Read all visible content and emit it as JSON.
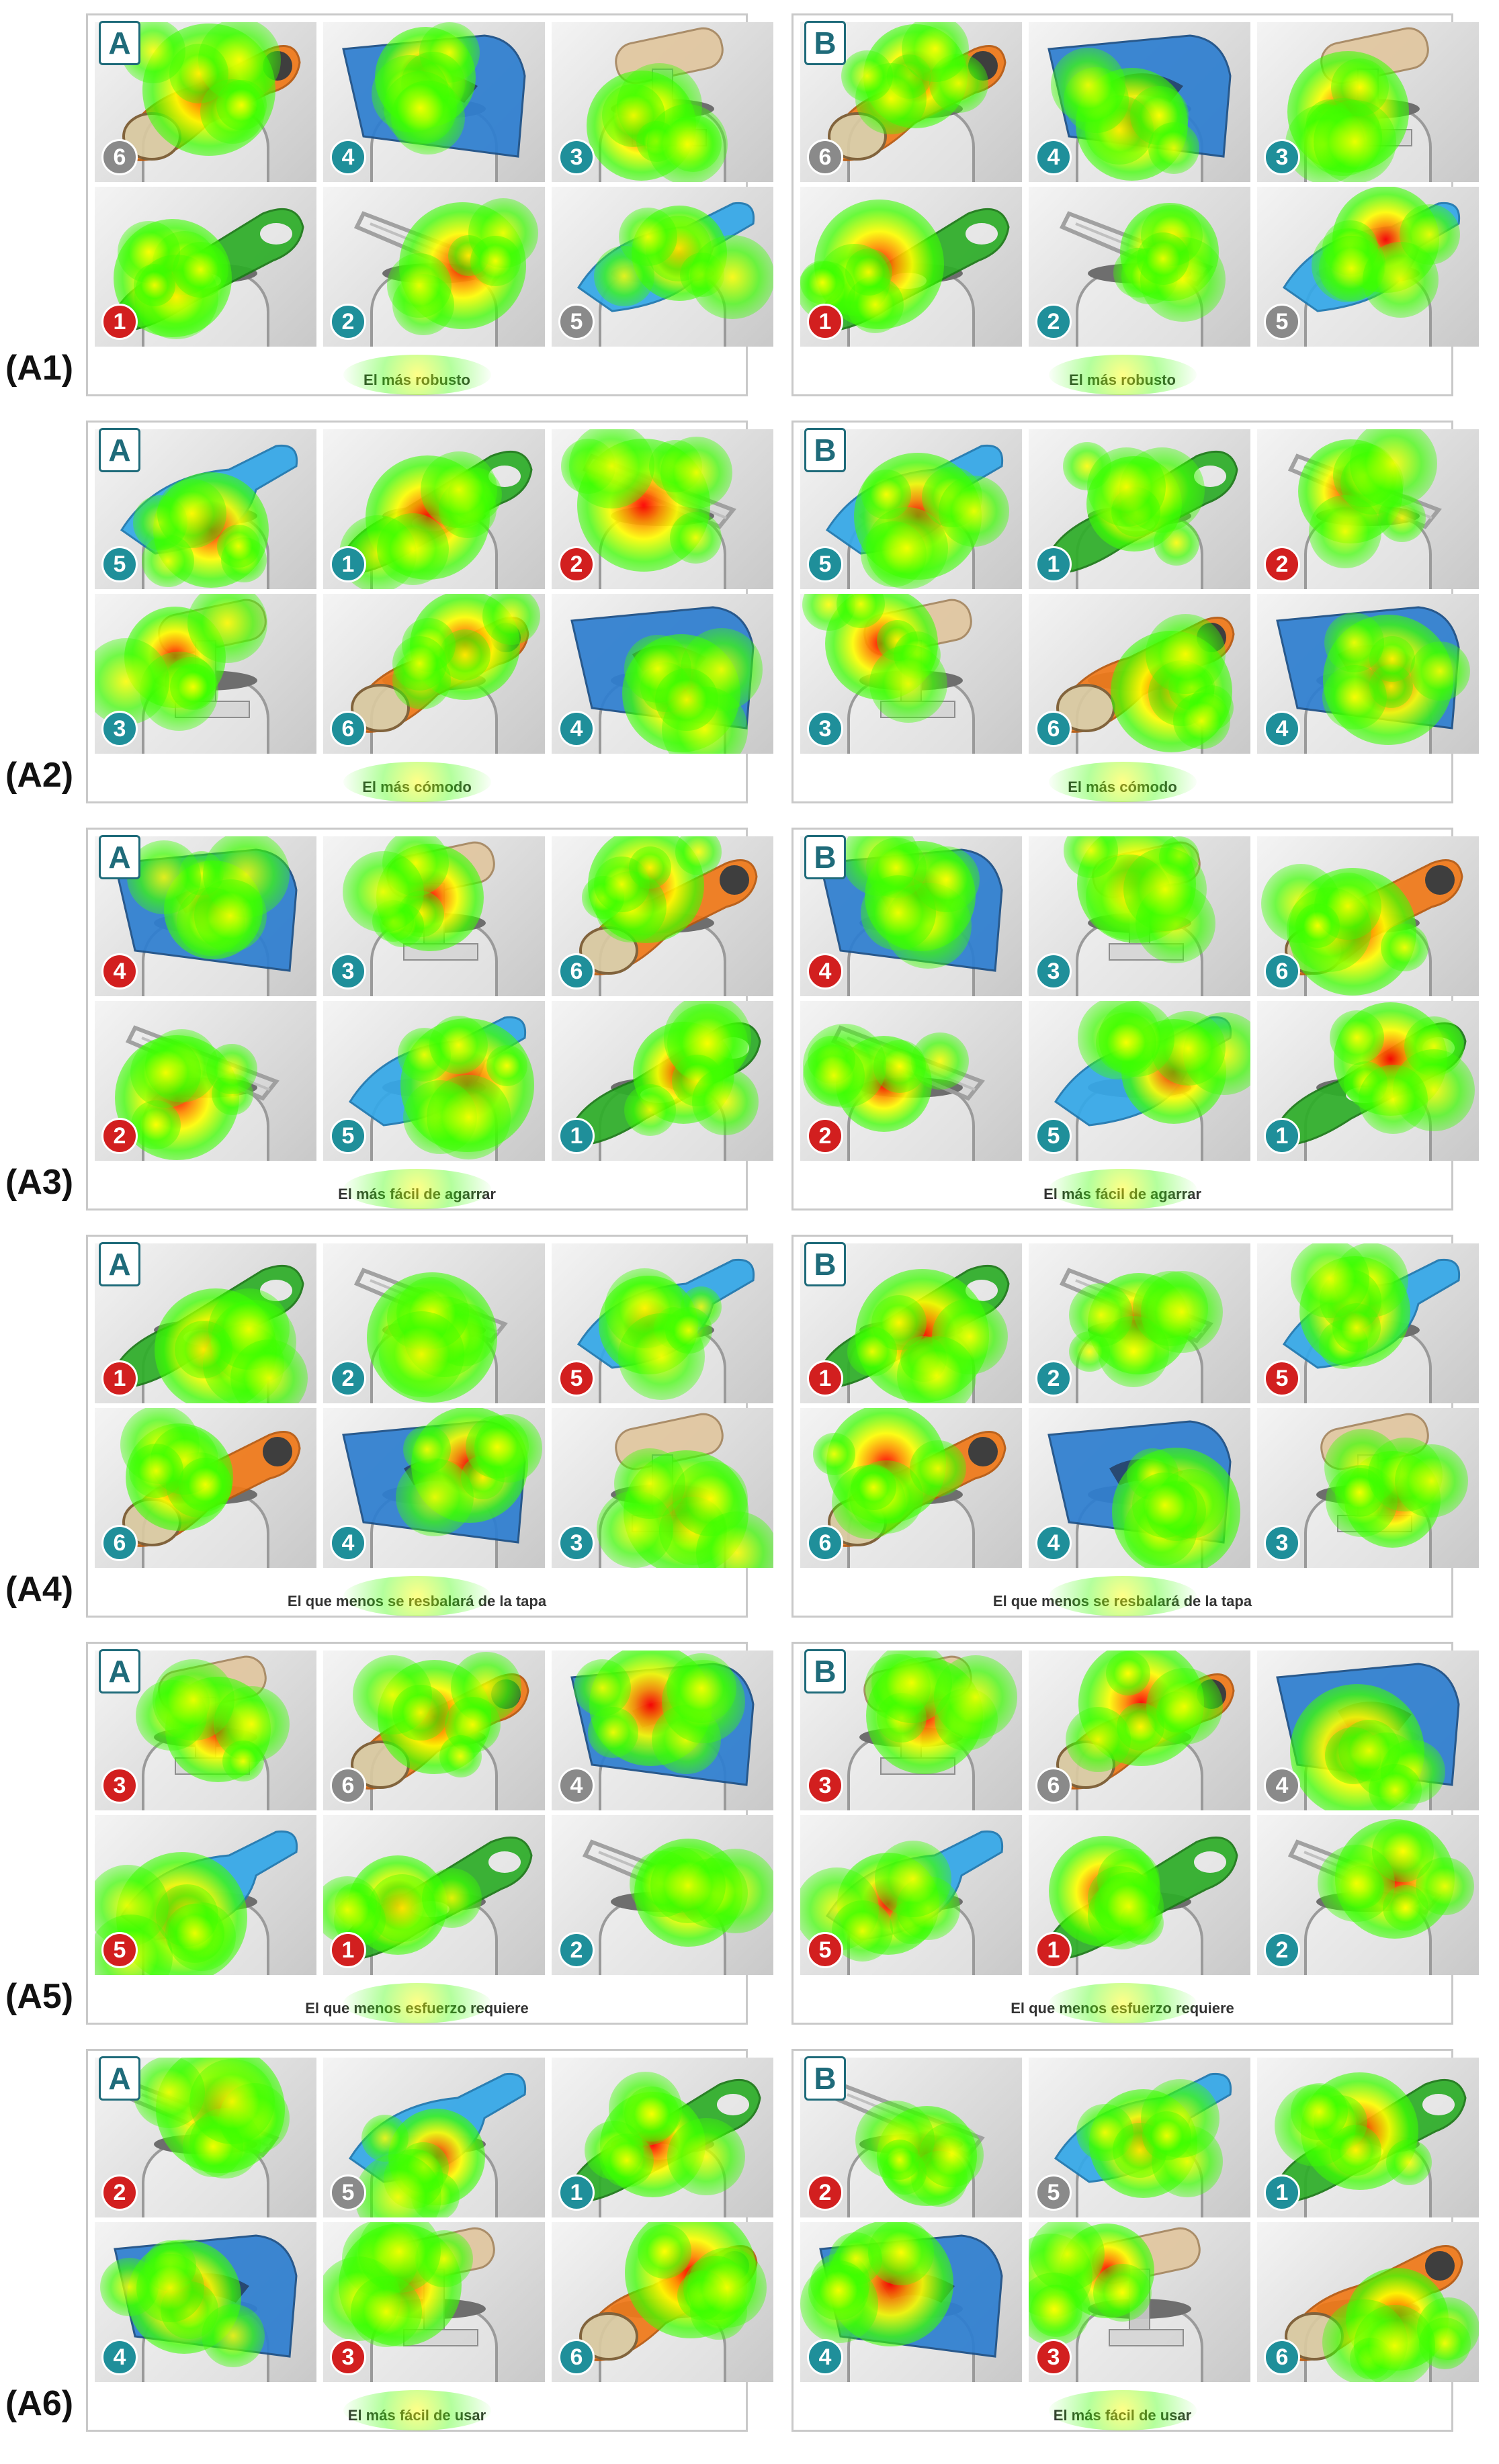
{
  "colors": {
    "badge_red": "#d21f1f",
    "badge_teal": "#1f8f9a",
    "badge_gray": "#8a8a8a",
    "orange_tool": "#f07a1a",
    "green_tool": "#2fae2a",
    "blue_tool": "#2f7fd0",
    "light_blue_tool": "#35a8e8",
    "frame": "#c9c9c9"
  },
  "rows": [
    {
      "label": "(A1)",
      "panels": [
        {
          "letter": "A",
          "caption": "El más robusto",
          "tiles": [
            {
              "badge": "6",
              "badge_color": "gray",
              "tool": "orange-opener"
            },
            {
              "badge": "4",
              "badge_color": "teal",
              "tool": "blue-plate"
            },
            {
              "badge": "3",
              "badge_color": "teal",
              "tool": "wood-handle"
            },
            {
              "badge": "1",
              "badge_color": "red",
              "tool": "green-opener"
            },
            {
              "badge": "2",
              "badge_color": "teal",
              "tool": "wire-clip"
            },
            {
              "badge": "5",
              "badge_color": "gray",
              "tool": "light-blue-scoop"
            }
          ]
        },
        {
          "letter": "B",
          "caption": "El más robusto",
          "tiles": [
            {
              "badge": "6",
              "badge_color": "gray",
              "tool": "orange-opener"
            },
            {
              "badge": "4",
              "badge_color": "teal",
              "tool": "blue-plate"
            },
            {
              "badge": "3",
              "badge_color": "teal",
              "tool": "wood-handle"
            },
            {
              "badge": "1",
              "badge_color": "red",
              "tool": "green-opener"
            },
            {
              "badge": "2",
              "badge_color": "teal",
              "tool": "wire-clip"
            },
            {
              "badge": "5",
              "badge_color": "gray",
              "tool": "light-blue-scoop"
            }
          ]
        }
      ]
    },
    {
      "label": "(A2)",
      "panels": [
        {
          "letter": "A",
          "caption": "El más cómodo",
          "tiles": [
            {
              "badge": "5",
              "badge_color": "teal",
              "tool": "light-blue-scoop"
            },
            {
              "badge": "1",
              "badge_color": "teal",
              "tool": "green-opener"
            },
            {
              "badge": "2",
              "badge_color": "red",
              "tool": "wire-clip"
            },
            {
              "badge": "3",
              "badge_color": "teal",
              "tool": "wood-handle"
            },
            {
              "badge": "6",
              "badge_color": "teal",
              "tool": "orange-opener"
            },
            {
              "badge": "4",
              "badge_color": "teal",
              "tool": "blue-plate"
            }
          ]
        },
        {
          "letter": "B",
          "caption": "El más cómodo",
          "tiles": [
            {
              "badge": "5",
              "badge_color": "teal",
              "tool": "light-blue-scoop"
            },
            {
              "badge": "1",
              "badge_color": "teal",
              "tool": "green-opener"
            },
            {
              "badge": "2",
              "badge_color": "red",
              "tool": "wire-clip"
            },
            {
              "badge": "3",
              "badge_color": "teal",
              "tool": "wood-handle"
            },
            {
              "badge": "6",
              "badge_color": "teal",
              "tool": "orange-opener"
            },
            {
              "badge": "4",
              "badge_color": "teal",
              "tool": "blue-plate"
            }
          ]
        }
      ]
    },
    {
      "label": "(A3)",
      "panels": [
        {
          "letter": "A",
          "caption": "El más fácil de agarrar",
          "tiles": [
            {
              "badge": "4",
              "badge_color": "red",
              "tool": "blue-plate"
            },
            {
              "badge": "3",
              "badge_color": "teal",
              "tool": "wood-handle"
            },
            {
              "badge": "6",
              "badge_color": "teal",
              "tool": "orange-opener"
            },
            {
              "badge": "2",
              "badge_color": "red",
              "tool": "wire-clip"
            },
            {
              "badge": "5",
              "badge_color": "teal",
              "tool": "light-blue-scoop"
            },
            {
              "badge": "1",
              "badge_color": "teal",
              "tool": "green-opener"
            }
          ]
        },
        {
          "letter": "B",
          "caption": "El más fácil de agarrar",
          "tiles": [
            {
              "badge": "4",
              "badge_color": "red",
              "tool": "blue-plate"
            },
            {
              "badge": "3",
              "badge_color": "teal",
              "tool": "wood-handle"
            },
            {
              "badge": "6",
              "badge_color": "teal",
              "tool": "orange-opener"
            },
            {
              "badge": "2",
              "badge_color": "red",
              "tool": "wire-clip"
            },
            {
              "badge": "5",
              "badge_color": "teal",
              "tool": "light-blue-scoop"
            },
            {
              "badge": "1",
              "badge_color": "teal",
              "tool": "green-opener"
            }
          ]
        }
      ]
    },
    {
      "label": "(A4)",
      "panels": [
        {
          "letter": "A",
          "caption": "El que menos se resbalará de la tapa",
          "tiles": [
            {
              "badge": "1",
              "badge_color": "red",
              "tool": "green-opener"
            },
            {
              "badge": "2",
              "badge_color": "teal",
              "tool": "wire-clip"
            },
            {
              "badge": "5",
              "badge_color": "red",
              "tool": "light-blue-scoop"
            },
            {
              "badge": "6",
              "badge_color": "teal",
              "tool": "orange-opener"
            },
            {
              "badge": "4",
              "badge_color": "teal",
              "tool": "blue-plate"
            },
            {
              "badge": "3",
              "badge_color": "teal",
              "tool": "wood-handle"
            }
          ]
        },
        {
          "letter": "B",
          "caption": "El que menos se resbalará de la tapa",
          "tiles": [
            {
              "badge": "1",
              "badge_color": "red",
              "tool": "green-opener"
            },
            {
              "badge": "2",
              "badge_color": "teal",
              "tool": "wire-clip"
            },
            {
              "badge": "5",
              "badge_color": "red",
              "tool": "light-blue-scoop"
            },
            {
              "badge": "6",
              "badge_color": "teal",
              "tool": "orange-opener"
            },
            {
              "badge": "4",
              "badge_color": "teal",
              "tool": "blue-plate"
            },
            {
              "badge": "3",
              "badge_color": "teal",
              "tool": "wood-handle"
            }
          ]
        }
      ]
    },
    {
      "label": "(A5)",
      "panels": [
        {
          "letter": "A",
          "caption": "El que menos esfuerzo requiere",
          "tiles": [
            {
              "badge": "3",
              "badge_color": "red",
              "tool": "wood-handle"
            },
            {
              "badge": "6",
              "badge_color": "gray",
              "tool": "orange-opener"
            },
            {
              "badge": "4",
              "badge_color": "gray",
              "tool": "blue-plate"
            },
            {
              "badge": "5",
              "badge_color": "red",
              "tool": "light-blue-scoop"
            },
            {
              "badge": "1",
              "badge_color": "red",
              "tool": "green-opener"
            },
            {
              "badge": "2",
              "badge_color": "teal",
              "tool": "wire-clip"
            }
          ]
        },
        {
          "letter": "B",
          "caption": "El que menos esfuerzo requiere",
          "tiles": [
            {
              "badge": "3",
              "badge_color": "red",
              "tool": "wood-handle"
            },
            {
              "badge": "6",
              "badge_color": "gray",
              "tool": "orange-opener"
            },
            {
              "badge": "4",
              "badge_color": "gray",
              "tool": "blue-plate"
            },
            {
              "badge": "5",
              "badge_color": "red",
              "tool": "light-blue-scoop"
            },
            {
              "badge": "1",
              "badge_color": "red",
              "tool": "green-opener"
            },
            {
              "badge": "2",
              "badge_color": "teal",
              "tool": "wire-clip"
            }
          ]
        }
      ]
    },
    {
      "label": "(A6)",
      "panels": [
        {
          "letter": "A",
          "caption": "El más fácil de usar",
          "tiles": [
            {
              "badge": "2",
              "badge_color": "red",
              "tool": "wire-clip"
            },
            {
              "badge": "5",
              "badge_color": "gray",
              "tool": "light-blue-scoop"
            },
            {
              "badge": "1",
              "badge_color": "teal",
              "tool": "green-opener"
            },
            {
              "badge": "4",
              "badge_color": "teal",
              "tool": "blue-plate"
            },
            {
              "badge": "3",
              "badge_color": "red",
              "tool": "wood-handle"
            },
            {
              "badge": "6",
              "badge_color": "teal",
              "tool": "orange-opener"
            }
          ]
        },
        {
          "letter": "B",
          "caption": "El más fácil de usar",
          "tiles": [
            {
              "badge": "2",
              "badge_color": "red",
              "tool": "wire-clip"
            },
            {
              "badge": "5",
              "badge_color": "gray",
              "tool": "light-blue-scoop"
            },
            {
              "badge": "1",
              "badge_color": "teal",
              "tool": "green-opener"
            },
            {
              "badge": "4",
              "badge_color": "teal",
              "tool": "blue-plate"
            },
            {
              "badge": "3",
              "badge_color": "red",
              "tool": "wood-handle"
            },
            {
              "badge": "6",
              "badge_color": "teal",
              "tool": "orange-opener"
            }
          ]
        }
      ]
    }
  ]
}
